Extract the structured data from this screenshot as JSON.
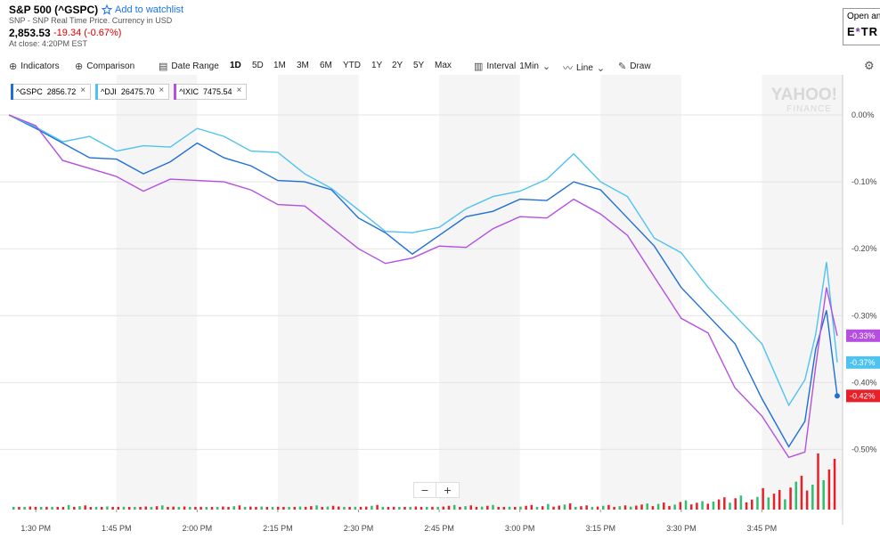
{
  "header": {
    "title": "S&P 500 (^GSPC)",
    "watchlist_label": "Add to watchlist",
    "subtitle": "SNP - SNP Real Time Price. Currency in USD",
    "price": "2,853.53",
    "change": "-19.34 (-0.67%)",
    "close_info": "At close: 4:20PM EST"
  },
  "ad": {
    "line1": "Open an",
    "brand_a": "E",
    "brand_b": "*",
    "brand_c": "TR"
  },
  "toolbar": {
    "indicators": "Indicators",
    "comparison": "Comparison",
    "date_range": "Date Range",
    "ranges": [
      "1D",
      "5D",
      "1M",
      "3M",
      "6M",
      "YTD",
      "1Y",
      "2Y",
      "5Y",
      "Max"
    ],
    "active_range": "1D",
    "interval_label": "Interval",
    "interval_value": "1Min",
    "line_label": "Line",
    "draw_label": "Draw"
  },
  "chips": [
    {
      "label": "^GSPC",
      "value": "2856.72",
      "color": "#1f6fd8"
    },
    {
      "label": "^DJI",
      "value": "26475.70",
      "color": "#4fc3f0"
    },
    {
      "label": "^IXIC",
      "value": "7475.54",
      "color": "#b44fe0"
    }
  ],
  "watermark": {
    "line1": "YAHOO!",
    "line2": "FINANCE"
  },
  "zoom": {
    "minus": "−",
    "plus": "+"
  },
  "chart_data": {
    "type": "line",
    "x": [
      "13:25",
      "13:30",
      "13:35",
      "13:40",
      "13:45",
      "13:50",
      "13:55",
      "14:00",
      "14:05",
      "14:10",
      "14:15",
      "14:20",
      "14:25",
      "14:30",
      "14:35",
      "14:40",
      "14:45",
      "14:50",
      "14:55",
      "15:00",
      "15:05",
      "15:10",
      "15:15",
      "15:20",
      "15:25",
      "15:30",
      "15:35",
      "15:40",
      "15:45",
      "15:50",
      "15:53",
      "15:55",
      "15:57",
      "15:59"
    ],
    "xticks": [
      "1:30 PM",
      "1:45 PM",
      "2:00 PM",
      "2:15 PM",
      "2:30 PM",
      "2:45 PM",
      "3:00 PM",
      "3:15 PM",
      "3:30 PM",
      "3:45 PM"
    ],
    "xtick_minutes": [
      810,
      825,
      840,
      855,
      870,
      885,
      900,
      915,
      930,
      945
    ],
    "yticks": [
      0.0,
      -0.1,
      -0.2,
      -0.3,
      -0.4,
      -0.5
    ],
    "ytick_labels": [
      "0.00%",
      "-0.10%",
      "-0.20%",
      "-0.30%",
      "-0.40%",
      "-0.50%"
    ],
    "ylim": [
      -0.59,
      0.06
    ],
    "ylabel": "",
    "series": [
      {
        "name": "^GSPC",
        "color": "#1f6fd8",
        "values": [
          0.0,
          -0.02,
          -0.05,
          -0.06,
          -0.07,
          -0.08,
          -0.07,
          -0.05,
          -0.06,
          -0.08,
          -0.09,
          -0.1,
          -0.12,
          -0.15,
          -0.18,
          -0.2,
          -0.18,
          -0.16,
          -0.14,
          -0.13,
          -0.12,
          -0.1,
          -0.12,
          -0.15,
          -0.2,
          -0.25,
          -0.3,
          -0.35,
          -0.42,
          -0.5,
          -0.45,
          -0.35,
          -0.3,
          -0.42
        ]
      },
      {
        "name": "^DJI",
        "color": "#4fc3f0",
        "values": [
          0.0,
          -0.01,
          -0.04,
          -0.04,
          -0.05,
          -0.05,
          -0.04,
          -0.02,
          -0.04,
          -0.05,
          -0.06,
          -0.08,
          -0.11,
          -0.15,
          -0.17,
          -0.18,
          -0.16,
          -0.14,
          -0.13,
          -0.11,
          -0.1,
          -0.05,
          -0.1,
          -0.13,
          -0.18,
          -0.21,
          -0.25,
          -0.3,
          -0.35,
          -0.43,
          -0.4,
          -0.32,
          -0.22,
          -0.37
        ]
      },
      {
        "name": "^IXIC",
        "color": "#b44fe0",
        "values": [
          0.0,
          -0.02,
          -0.06,
          -0.08,
          -0.1,
          -0.11,
          -0.1,
          -0.09,
          -0.1,
          -0.12,
          -0.13,
          -0.14,
          -0.16,
          -0.2,
          -0.23,
          -0.21,
          -0.2,
          -0.19,
          -0.17,
          -0.16,
          -0.15,
          -0.13,
          -0.14,
          -0.18,
          -0.25,
          -0.3,
          -0.33,
          -0.4,
          -0.45,
          -0.52,
          -0.5,
          -0.38,
          -0.25,
          -0.33
        ]
      }
    ],
    "end_labels": [
      {
        "label": "-0.33%",
        "color": "#b44fe0",
        "value": -0.33
      },
      {
        "label": "-0.37%",
        "color": "#4fc3f0",
        "value": -0.37
      },
      {
        "label": "-0.42%",
        "color": "#e8202a",
        "value": -0.42
      }
    ],
    "volume": {
      "up_color": "#2fbf71",
      "down_color": "#e8202a",
      "values": [
        2,
        2,
        3,
        2,
        2,
        3,
        2,
        2,
        3,
        2,
        2,
        3,
        2,
        3,
        2,
        2,
        3,
        3,
        2,
        3,
        4,
        3,
        3,
        4,
        5,
        6,
        8,
        10,
        14,
        22,
        40
      ]
    },
    "grid": true
  }
}
